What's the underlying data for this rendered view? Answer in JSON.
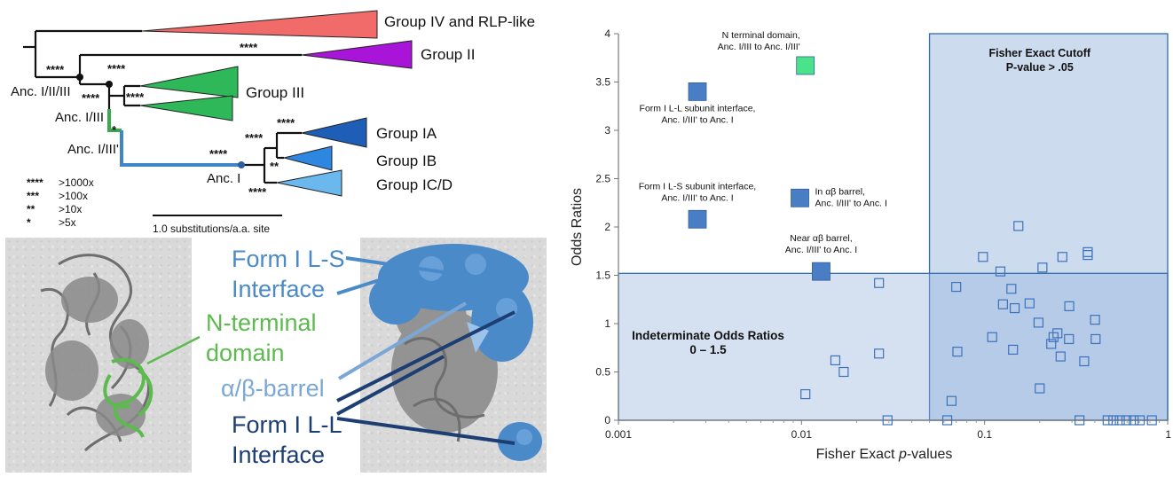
{
  "tree": {
    "groups": [
      {
        "label": "Group IV and RLP-like",
        "color": "#f26b6b"
      },
      {
        "label": "Group II",
        "color": "#a815d8"
      },
      {
        "label": "Group III",
        "color": "#2fb85a"
      },
      {
        "label": "Group IA",
        "color": "#1e5eb7"
      },
      {
        "label": "Group IB",
        "color": "#2d87e0"
      },
      {
        "label": "Group IC/D",
        "color": "#6ab8ee"
      }
    ],
    "nodes": [
      "Anc. I/II/III",
      "Anc. I/III",
      "Anc. I/III'",
      "Anc. I"
    ],
    "support_marks": {
      "four": "****",
      "two": "**",
      "one": "*"
    },
    "legend": [
      {
        "stars": "****",
        "text": ">1000x"
      },
      {
        "stars": "***",
        "text": ">100x"
      },
      {
        "stars": "**",
        "text": ">10x"
      },
      {
        "stars": "*",
        "text": ">5x"
      }
    ],
    "scale_label": "1.0 substitutions/a.a. site",
    "colors": {
      "branch": "#111111",
      "green_branch": "#3aa84b",
      "blue_branch": "#3f86c8"
    }
  },
  "structures": {
    "labels": {
      "ls_line1": "Form I L-S",
      "ls_line2": "Interface",
      "nterm_line1": "N-terminal",
      "nterm_line2": "domain",
      "barrel": "α/β-barrel",
      "ll_line1": "Form I L-L",
      "ll_line2": "Interface"
    },
    "colors": {
      "ls": "#4b8ac9",
      "nterm": "#5cba4f",
      "barrel": "#7ba7d6",
      "ll": "#1d3e72"
    }
  },
  "chart_data": {
    "type": "scatter",
    "xlabel": "Fisher Exact p-values",
    "xlabel_parts": [
      "Fisher Exact ",
      "p",
      "-values"
    ],
    "ylabel": "Odds Ratios",
    "xscale": "log",
    "xlim": [
      0.001,
      1
    ],
    "ylim": [
      0,
      4
    ],
    "xticks": [
      {
        "v": 0.001,
        "label": "0.001"
      },
      {
        "v": 0.01,
        "label": "0.01"
      },
      {
        "v": 0.1,
        "label": "0.1"
      },
      {
        "v": 1,
        "label": "1"
      }
    ],
    "yticks": [
      {
        "v": 0,
        "label": "0"
      },
      {
        "v": 0.5,
        "label": "0.5"
      },
      {
        "v": 1,
        "label": "1"
      },
      {
        "v": 1.5,
        "label": "1.5"
      },
      {
        "v": 2,
        "label": "2"
      },
      {
        "v": 2.5,
        "label": "2.5"
      },
      {
        "v": 3,
        "label": "3"
      },
      {
        "v": 3.5,
        "label": "3.5"
      },
      {
        "v": 4,
        "label": "4"
      }
    ],
    "regions": [
      {
        "title": "Fisher Exact Cutoff",
        "subtitle": "P-value > .05",
        "x": [
          0.05,
          1
        ],
        "y": [
          0,
          4
        ]
      },
      {
        "title": "Indeterminate Odds Ratios",
        "subtitle": "0 – 1.5",
        "x": [
          0.001,
          1
        ],
        "y": [
          0,
          1.52
        ]
      }
    ],
    "highlighted": [
      {
        "x": 0.0105,
        "y": 3.67,
        "color": "#4be38a",
        "label_lines": [
          "N terminal domain,",
          "Anc. I/III to Anc. I/III'"
        ],
        "label_anchor": "end",
        "label_dx": -6,
        "label_dy": -31
      },
      {
        "x": 0.0027,
        "y": 3.4,
        "color": "#4a7ec4",
        "label_lines": [
          "Form I L-L subunit interface,",
          "Anc. I/III' to Anc. I"
        ],
        "label_anchor": "middle",
        "label_dx": 0,
        "label_dy": 22
      },
      {
        "x": 0.0027,
        "y": 2.08,
        "color": "#4a7ec4",
        "label_lines": [
          "Form I L-S subunit interface,",
          "Anc. I/III' to Anc. I"
        ],
        "label_anchor": "middle",
        "label_dx": 0,
        "label_dy": -34
      },
      {
        "x": 0.0098,
        "y": 2.3,
        "color": "#4a7ec4",
        "label_lines": [
          "In αβ barrel,",
          "Anc. I/III' to Anc. I"
        ],
        "label_anchor": "start",
        "label_dx": 17,
        "label_dy": -4
      },
      {
        "x": 0.0128,
        "y": 1.54,
        "color": "#4a7ec4",
        "label_lines": [
          "Near αβ barrel,",
          "Anc. I/III' to Anc. I"
        ],
        "label_anchor": "middle",
        "label_dx": 0,
        "label_dy": -34
      }
    ],
    "points": [
      [
        0.0105,
        0.27
      ],
      [
        0.0153,
        0.62
      ],
      [
        0.017,
        0.5
      ],
      [
        0.0265,
        1.42
      ],
      [
        0.0265,
        0.69
      ],
      [
        0.0295,
        0.0
      ],
      [
        0.0625,
        0.0
      ],
      [
        0.066,
        0.2
      ],
      [
        0.07,
        1.38
      ],
      [
        0.071,
        0.71
      ],
      [
        0.098,
        1.69
      ],
      [
        0.11,
        0.86
      ],
      [
        0.122,
        1.54
      ],
      [
        0.126,
        1.2
      ],
      [
        0.14,
        1.36
      ],
      [
        0.143,
        0.73
      ],
      [
        0.146,
        1.16
      ],
      [
        0.153,
        2.01
      ],
      [
        0.176,
        1.21
      ],
      [
        0.197,
        1.01
      ],
      [
        0.2,
        0.33
      ],
      [
        0.207,
        1.58
      ],
      [
        0.231,
        0.79
      ],
      [
        0.238,
        0.86
      ],
      [
        0.25,
        0.9
      ],
      [
        0.26,
        0.66
      ],
      [
        0.266,
        1.69
      ],
      [
        0.29,
        1.18
      ],
      [
        0.289,
        0.84
      ],
      [
        0.33,
        0.0
      ],
      [
        0.35,
        0.61
      ],
      [
        0.366,
        1.74
      ],
      [
        0.366,
        1.71
      ],
      [
        0.401,
        1.04
      ],
      [
        0.404,
        0.84
      ],
      [
        0.47,
        0.0
      ],
      [
        0.505,
        0.0
      ],
      [
        0.548,
        0.0
      ],
      [
        0.595,
        0.0
      ],
      [
        0.652,
        0.0
      ],
      [
        0.704,
        0.0
      ],
      [
        0.82,
        0.0
      ]
    ]
  }
}
